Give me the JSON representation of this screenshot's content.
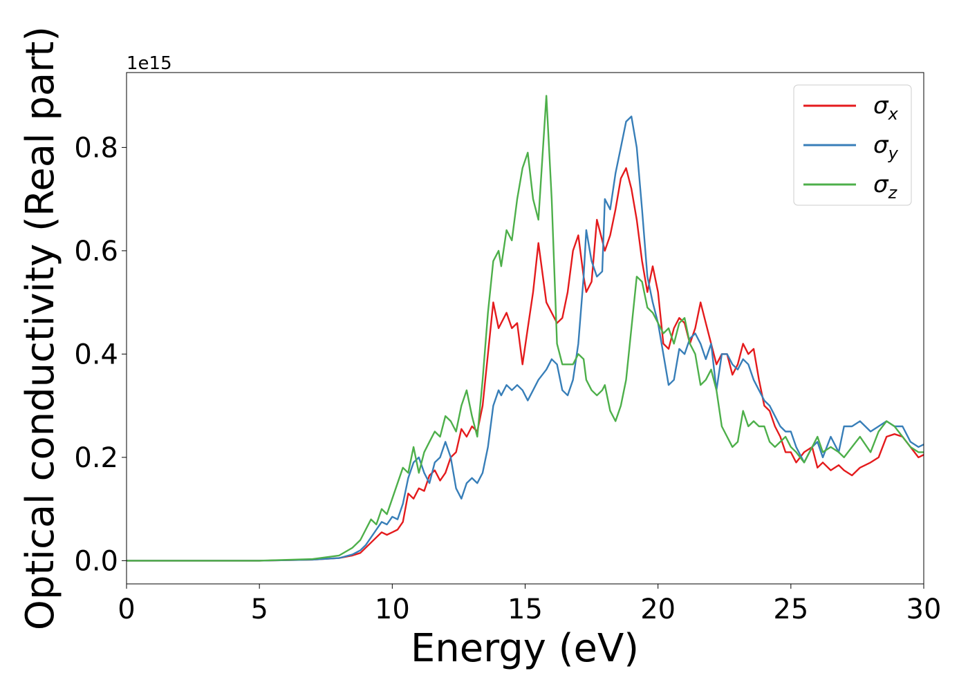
{
  "chart_data": {
    "type": "line",
    "title": "",
    "xlabel": "Energy (eV)",
    "ylabel": "Optical conductivity (Real part)",
    "offset_label": "1e15",
    "xlim": [
      0,
      30
    ],
    "ylim": [
      -0.045,
      0.945
    ],
    "xticks": [
      0,
      5,
      10,
      15,
      20,
      25,
      30
    ],
    "xtick_labels": [
      "0",
      "5",
      "10",
      "15",
      "20",
      "25",
      "30"
    ],
    "yticks": [
      0.0,
      0.2,
      0.4,
      0.6,
      0.8
    ],
    "ytick_labels": [
      "0.0",
      "0.2",
      "0.4",
      "0.6",
      "0.8"
    ],
    "grid": false,
    "legend": {
      "placement": "top-right"
    },
    "series": [
      {
        "name": "σx",
        "label_base": "σ",
        "label_sub": "x",
        "color": "#e41a1c",
        "x": [
          0,
          5,
          7,
          8,
          8.5,
          8.8,
          9,
          9.2,
          9.4,
          9.6,
          9.8,
          10,
          10.2,
          10.4,
          10.6,
          10.8,
          11,
          11.2,
          11.4,
          11.6,
          11.8,
          12,
          12.2,
          12.4,
          12.6,
          12.8,
          13,
          13.2,
          13.4,
          13.6,
          13.8,
          14,
          14.1,
          14.3,
          14.5,
          14.7,
          14.9,
          15.1,
          15.3,
          15.5,
          15.8,
          16,
          16.2,
          16.4,
          16.6,
          16.8,
          17,
          17.2,
          17.3,
          17.5,
          17.7,
          17.9,
          18,
          18.2,
          18.4,
          18.6,
          18.8,
          19,
          19.2,
          19.4,
          19.6,
          19.8,
          20,
          20.2,
          20.4,
          20.6,
          20.8,
          21,
          21.2,
          21.4,
          21.6,
          21.8,
          22,
          22.2,
          22.4,
          22.6,
          22.8,
          23,
          23.2,
          23.4,
          23.6,
          23.8,
          24,
          24.2,
          24.4,
          24.6,
          24.8,
          25,
          25.2,
          25.5,
          25.8,
          26,
          26.2,
          26.5,
          26.8,
          27,
          27.3,
          27.6,
          28,
          28.3,
          28.6,
          28.9,
          29.2,
          29.5,
          29.8,
          30
        ],
        "y": [
          0,
          0,
          0.002,
          0.005,
          0.01,
          0.015,
          0.025,
          0.035,
          0.045,
          0.055,
          0.05,
          0.055,
          0.06,
          0.075,
          0.13,
          0.12,
          0.14,
          0.135,
          0.165,
          0.175,
          0.155,
          0.17,
          0.2,
          0.21,
          0.255,
          0.24,
          0.26,
          0.25,
          0.3,
          0.4,
          0.5,
          0.45,
          0.46,
          0.48,
          0.45,
          0.46,
          0.38,
          0.45,
          0.52,
          0.615,
          0.5,
          0.48,
          0.46,
          0.47,
          0.52,
          0.6,
          0.63,
          0.55,
          0.52,
          0.54,
          0.66,
          0.62,
          0.6,
          0.63,
          0.68,
          0.74,
          0.76,
          0.72,
          0.66,
          0.58,
          0.52,
          0.57,
          0.52,
          0.42,
          0.41,
          0.45,
          0.47,
          0.46,
          0.42,
          0.45,
          0.5,
          0.46,
          0.42,
          0.38,
          0.4,
          0.4,
          0.36,
          0.38,
          0.42,
          0.4,
          0.41,
          0.35,
          0.3,
          0.29,
          0.26,
          0.24,
          0.21,
          0.21,
          0.19,
          0.21,
          0.22,
          0.18,
          0.19,
          0.175,
          0.185,
          0.175,
          0.165,
          0.18,
          0.19,
          0.2,
          0.24,
          0.245,
          0.24,
          0.22,
          0.2,
          0.205
        ]
      },
      {
        "name": "σy",
        "label_base": "σ",
        "label_sub": "y",
        "color": "#377eb8",
        "x": [
          0,
          5,
          7,
          8,
          8.5,
          8.8,
          9,
          9.2,
          9.4,
          9.6,
          9.8,
          10,
          10.2,
          10.4,
          10.6,
          10.8,
          11,
          11.2,
          11.4,
          11.6,
          11.8,
          12,
          12.2,
          12.4,
          12.6,
          12.8,
          13,
          13.2,
          13.4,
          13.6,
          13.8,
          14,
          14.1,
          14.3,
          14.5,
          14.7,
          14.9,
          15.1,
          15.3,
          15.5,
          15.8,
          16,
          16.2,
          16.4,
          16.6,
          16.8,
          17,
          17.2,
          17.3,
          17.5,
          17.7,
          17.9,
          18,
          18.2,
          18.4,
          18.6,
          18.8,
          19,
          19.2,
          19.4,
          19.6,
          19.8,
          20,
          20.2,
          20.4,
          20.6,
          20.8,
          21,
          21.2,
          21.4,
          21.6,
          21.8,
          22,
          22.2,
          22.4,
          22.6,
          22.8,
          23,
          23.2,
          23.4,
          23.6,
          23.8,
          24,
          24.2,
          24.4,
          24.6,
          24.8,
          25,
          25.2,
          25.5,
          25.8,
          26,
          26.2,
          26.5,
          26.8,
          27,
          27.3,
          27.6,
          28,
          28.3,
          28.6,
          28.9,
          29.2,
          29.5,
          29.8,
          30
        ],
        "y": [
          0,
          0,
          0.002,
          0.005,
          0.012,
          0.02,
          0.03,
          0.045,
          0.06,
          0.075,
          0.07,
          0.085,
          0.08,
          0.11,
          0.16,
          0.19,
          0.2,
          0.17,
          0.15,
          0.19,
          0.2,
          0.23,
          0.2,
          0.14,
          0.12,
          0.15,
          0.16,
          0.15,
          0.17,
          0.22,
          0.3,
          0.33,
          0.32,
          0.34,
          0.33,
          0.34,
          0.33,
          0.31,
          0.33,
          0.35,
          0.37,
          0.39,
          0.38,
          0.33,
          0.32,
          0.35,
          0.42,
          0.55,
          0.64,
          0.58,
          0.55,
          0.56,
          0.7,
          0.68,
          0.75,
          0.8,
          0.85,
          0.86,
          0.8,
          0.68,
          0.55,
          0.5,
          0.46,
          0.4,
          0.34,
          0.35,
          0.41,
          0.4,
          0.43,
          0.44,
          0.42,
          0.39,
          0.42,
          0.33,
          0.4,
          0.4,
          0.38,
          0.37,
          0.39,
          0.38,
          0.35,
          0.33,
          0.31,
          0.3,
          0.28,
          0.26,
          0.25,
          0.25,
          0.22,
          0.19,
          0.22,
          0.23,
          0.2,
          0.24,
          0.21,
          0.26,
          0.26,
          0.27,
          0.25,
          0.26,
          0.27,
          0.26,
          0.26,
          0.23,
          0.22,
          0.225
        ]
      },
      {
        "name": "σz",
        "label_base": "σ",
        "label_sub": "z",
        "color": "#4daf4a",
        "x": [
          0,
          5,
          7,
          8,
          8.5,
          8.8,
          9,
          9.2,
          9.4,
          9.6,
          9.8,
          10,
          10.2,
          10.4,
          10.6,
          10.8,
          11,
          11.2,
          11.4,
          11.6,
          11.8,
          12,
          12.2,
          12.4,
          12.6,
          12.8,
          13,
          13.2,
          13.4,
          13.6,
          13.8,
          14,
          14.1,
          14.3,
          14.5,
          14.7,
          14.9,
          15.1,
          15.3,
          15.5,
          15.8,
          16,
          16.2,
          16.4,
          16.6,
          16.8,
          17,
          17.2,
          17.3,
          17.5,
          17.7,
          17.9,
          18,
          18.2,
          18.4,
          18.6,
          18.8,
          19,
          19.2,
          19.4,
          19.6,
          19.8,
          20,
          20.2,
          20.4,
          20.6,
          20.8,
          21,
          21.2,
          21.4,
          21.6,
          21.8,
          22,
          22.2,
          22.4,
          22.6,
          22.8,
          23,
          23.2,
          23.4,
          23.6,
          23.8,
          24,
          24.2,
          24.4,
          24.6,
          24.8,
          25,
          25.2,
          25.5,
          25.8,
          26,
          26.2,
          26.5,
          26.8,
          27,
          27.3,
          27.6,
          28,
          28.3,
          28.6,
          28.9,
          29.2,
          29.5,
          29.8,
          30
        ],
        "y": [
          0,
          0,
          0.003,
          0.01,
          0.025,
          0.04,
          0.06,
          0.08,
          0.07,
          0.1,
          0.09,
          0.12,
          0.15,
          0.18,
          0.17,
          0.22,
          0.17,
          0.21,
          0.23,
          0.25,
          0.24,
          0.28,
          0.27,
          0.25,
          0.3,
          0.33,
          0.28,
          0.24,
          0.35,
          0.48,
          0.58,
          0.6,
          0.57,
          0.64,
          0.62,
          0.7,
          0.76,
          0.79,
          0.7,
          0.66,
          0.9,
          0.7,
          0.42,
          0.38,
          0.38,
          0.38,
          0.4,
          0.39,
          0.35,
          0.33,
          0.32,
          0.33,
          0.34,
          0.29,
          0.27,
          0.3,
          0.35,
          0.45,
          0.55,
          0.54,
          0.49,
          0.48,
          0.46,
          0.44,
          0.45,
          0.42,
          0.46,
          0.47,
          0.42,
          0.4,
          0.34,
          0.35,
          0.37,
          0.33,
          0.26,
          0.24,
          0.22,
          0.23,
          0.29,
          0.26,
          0.27,
          0.26,
          0.26,
          0.23,
          0.22,
          0.23,
          0.24,
          0.22,
          0.21,
          0.19,
          0.22,
          0.24,
          0.21,
          0.22,
          0.21,
          0.2,
          0.22,
          0.24,
          0.21,
          0.25,
          0.27,
          0.26,
          0.24,
          0.22,
          0.21,
          0.21
        ]
      }
    ]
  }
}
